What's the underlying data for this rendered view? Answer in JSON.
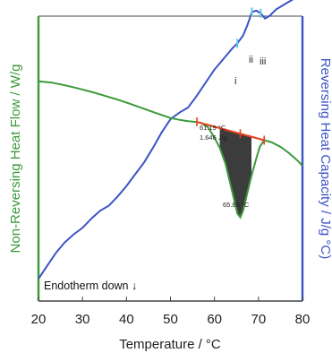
{
  "chart_data": {
    "type": "line",
    "xlabel": "Temperature / °C",
    "ylabel_left": "Non-Reversing Heat Flow / W/g",
    "ylabel_right": "Reversing Heat Capacity / J/g °C)",
    "xlim": [
      20,
      80
    ],
    "x_ticks": [
      20,
      30,
      40,
      50,
      60,
      70,
      80
    ],
    "grid": false,
    "legend": "none",
    "colors": {
      "non_reversing": "#3a9a3a",
      "reversing": "#3c53c6",
      "baseline": "#e8401c",
      "peak_fill": "#1a1a1a",
      "markers": "#5bc8e8",
      "frame": "#444444"
    },
    "series": [
      {
        "key": "non_reversing",
        "axis": "left",
        "x": [
          20,
          23,
          26,
          29,
          32,
          35,
          38,
          41,
          44,
          47,
          50,
          52,
          54,
          55.6,
          57,
          58.5,
          60,
          61.2,
          62.5,
          63.5,
          64.5,
          65.2,
          65.86,
          66.5,
          67.5,
          68.5,
          69.5,
          70.3,
          71.3,
          73,
          75,
          77,
          79,
          80
        ],
        "y": [
          0.785,
          0.78,
          0.77,
          0.758,
          0.745,
          0.73,
          0.715,
          0.698,
          0.68,
          0.662,
          0.645,
          0.638,
          0.633,
          0.63,
          0.626,
          0.61,
          0.57,
          0.53,
          0.47,
          0.4,
          0.33,
          0.28,
          0.265,
          0.29,
          0.36,
          0.43,
          0.49,
          0.535,
          0.56,
          0.552,
          0.535,
          0.51,
          0.48,
          0.462
        ]
      },
      {
        "key": "reversing",
        "axis": "right",
        "x": [
          20,
          22,
          24,
          26,
          28,
          30,
          32,
          34,
          36,
          38,
          40,
          42,
          44,
          46,
          48,
          50,
          52,
          54,
          56,
          58,
          60,
          62,
          64,
          65.2,
          66.5,
          67.5,
          68.5,
          69.5,
          70.5,
          71.5,
          72.5,
          74,
          76,
          78,
          79,
          80
        ],
        "y": [
          0.03,
          0.08,
          0.13,
          0.17,
          0.2,
          0.225,
          0.26,
          0.29,
          0.31,
          0.345,
          0.385,
          0.43,
          0.475,
          0.53,
          0.59,
          0.64,
          0.665,
          0.685,
          0.73,
          0.78,
          0.83,
          0.87,
          0.91,
          0.93,
          0.96,
          1.0,
          1.05,
          1.055,
          1.045,
          1.025,
          1.035,
          1.06,
          1.08,
          1.1,
          1.115,
          1.12
        ]
      }
    ],
    "baseline": {
      "x": [
        56,
        71.3
      ],
      "y": [
        0.63,
        0.56
      ]
    },
    "peak_fill_x_range": [
      61.2,
      68.4
    ],
    "ticks_on_baseline_x": [
      56,
      65.86,
      71.3
    ],
    "cyan_marker_x": [
      65.2,
      68.5,
      70.5
    ],
    "annotations": {
      "onset_temp": "61.19 °C",
      "enthalpy": "1.646 J/g",
      "peak_temp": "65.86 °C",
      "endotherm": "Endotherm down ↓",
      "marker_i": "i",
      "marker_ii": "ii",
      "marker_iii": "iii"
    }
  }
}
